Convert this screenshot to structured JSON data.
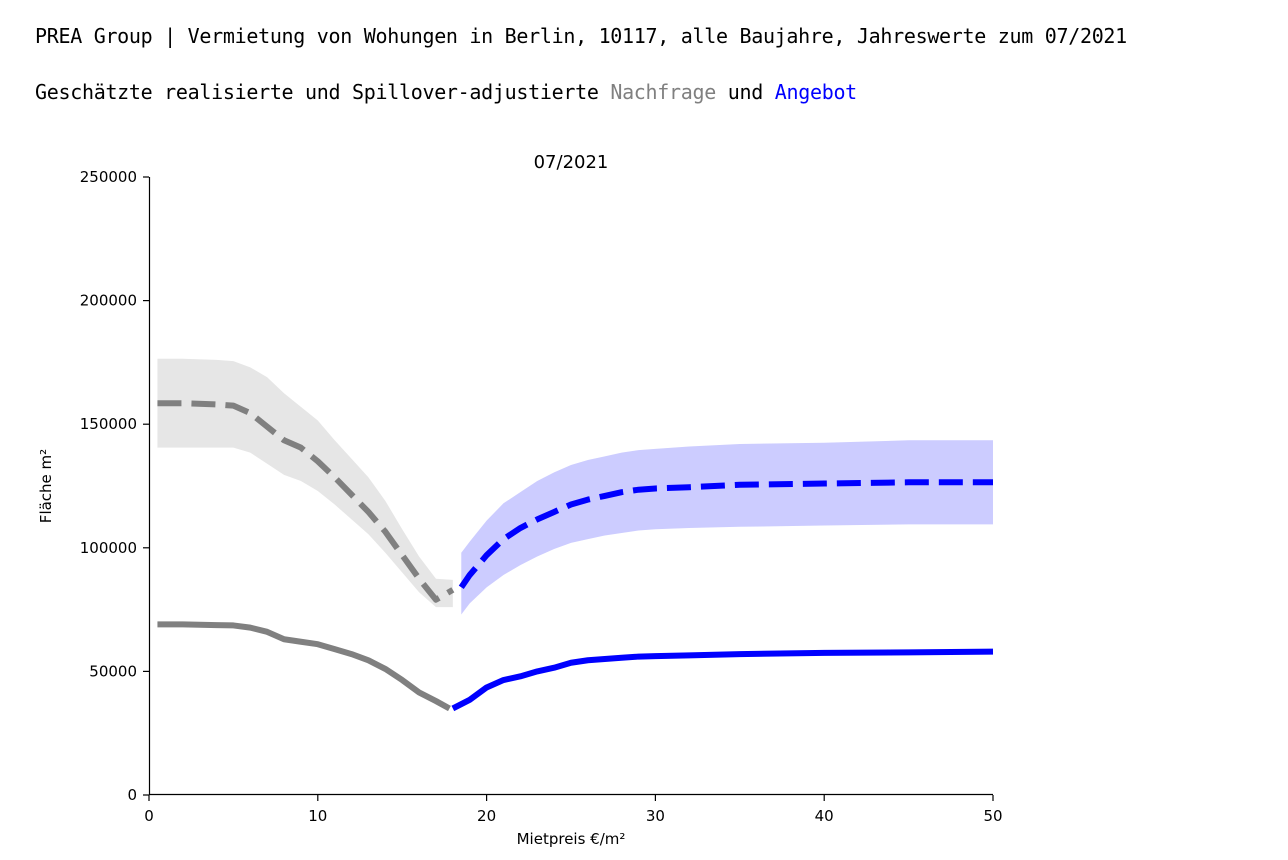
{
  "header": {
    "title": "PREA Group | Vermietung von Wohungen in Berlin, 10117, alle Baujahre, Jahreswerte zum 07/2021",
    "subtitle_prefix": "Geschätzte realisierte und Spillover-adjustierte",
    "subtitle_demand": "Nachfrage",
    "subtitle_und": "und",
    "subtitle_supply": "Angebot"
  },
  "chart_data": {
    "type": "line",
    "title": "07/2021",
    "xlabel": "Mietpreis €/m²",
    "ylabel": "Fläche m²",
    "xlim": [
      0,
      50
    ],
    "ylim": [
      0,
      250000
    ],
    "xticks": [
      0,
      10,
      20,
      30,
      40,
      50
    ],
    "yticks": [
      0,
      50000,
      100000,
      150000,
      200000,
      250000
    ],
    "grid": false,
    "colors": {
      "demand": "#808080",
      "demand_band": "#e6e6e6",
      "supply": "#0000ff",
      "supply_band": "#ccccff"
    },
    "series": [
      {
        "key": "demand_spillover",
        "style": "dashed",
        "color": "#808080",
        "x": [
          0.5,
          2,
          4,
          5,
          6,
          7,
          8,
          9,
          10,
          11,
          12,
          13,
          14,
          15,
          16,
          17,
          18
        ],
        "y": [
          158500,
          158500,
          158000,
          157500,
          154500,
          149000,
          143500,
          140500,
          135000,
          128500,
          121500,
          114500,
          106500,
          97000,
          87500,
          79000,
          83000
        ],
        "band_lower": [
          140500,
          140500,
          140500,
          140500,
          138500,
          134000,
          129500,
          127000,
          123000,
          117500,
          111500,
          105500,
          98000,
          90000,
          82000,
          76000,
          76000
        ],
        "band_upper": [
          176500,
          176500,
          176000,
          175500,
          173000,
          169000,
          162500,
          157000,
          151500,
          143500,
          136000,
          128500,
          119000,
          107500,
          96500,
          87500,
          87000
        ]
      },
      {
        "key": "demand_realized",
        "style": "solid",
        "color": "#808080",
        "x": [
          0.5,
          2,
          4,
          5,
          6,
          7,
          8,
          9,
          10,
          11,
          12,
          13,
          14,
          15,
          16,
          17,
          17.8
        ],
        "y": [
          69000,
          69000,
          68700,
          68600,
          67700,
          66000,
          63000,
          62000,
          61000,
          59000,
          57000,
          54500,
          51000,
          46500,
          41500,
          38000,
          35000
        ]
      },
      {
        "key": "supply_spillover",
        "style": "dashed",
        "color": "#0000ff",
        "x": [
          18.5,
          19,
          20,
          21,
          22,
          23,
          24,
          25,
          26,
          27,
          28,
          29,
          30,
          32,
          35,
          40,
          45,
          50
        ],
        "y": [
          84000,
          89000,
          97000,
          103500,
          108000,
          111500,
          114500,
          117500,
          119500,
          121000,
          122500,
          123500,
          124000,
          124500,
          125500,
          126000,
          126500,
          126500
        ],
        "band_lower": [
          73000,
          77500,
          84000,
          89000,
          93000,
          96500,
          99500,
          102000,
          103500,
          105000,
          106000,
          107000,
          107500,
          108000,
          108500,
          109000,
          109500,
          109500
        ],
        "band_upper": [
          98000,
          102500,
          111000,
          118000,
          122500,
          127000,
          130500,
          133500,
          135500,
          137000,
          138500,
          139500,
          140000,
          141000,
          142000,
          142500,
          143500,
          143500
        ]
      },
      {
        "key": "supply_realized",
        "style": "solid",
        "color": "#0000ff",
        "x": [
          18,
          19,
          20,
          21,
          22,
          23,
          24,
          25,
          26,
          27,
          28,
          29,
          30,
          32,
          35,
          40,
          45,
          50
        ],
        "y": [
          35000,
          38500,
          43500,
          46500,
          48000,
          50000,
          51500,
          53500,
          54500,
          55000,
          55500,
          56000,
          56200,
          56500,
          57000,
          57500,
          57700,
          58000
        ]
      }
    ]
  }
}
